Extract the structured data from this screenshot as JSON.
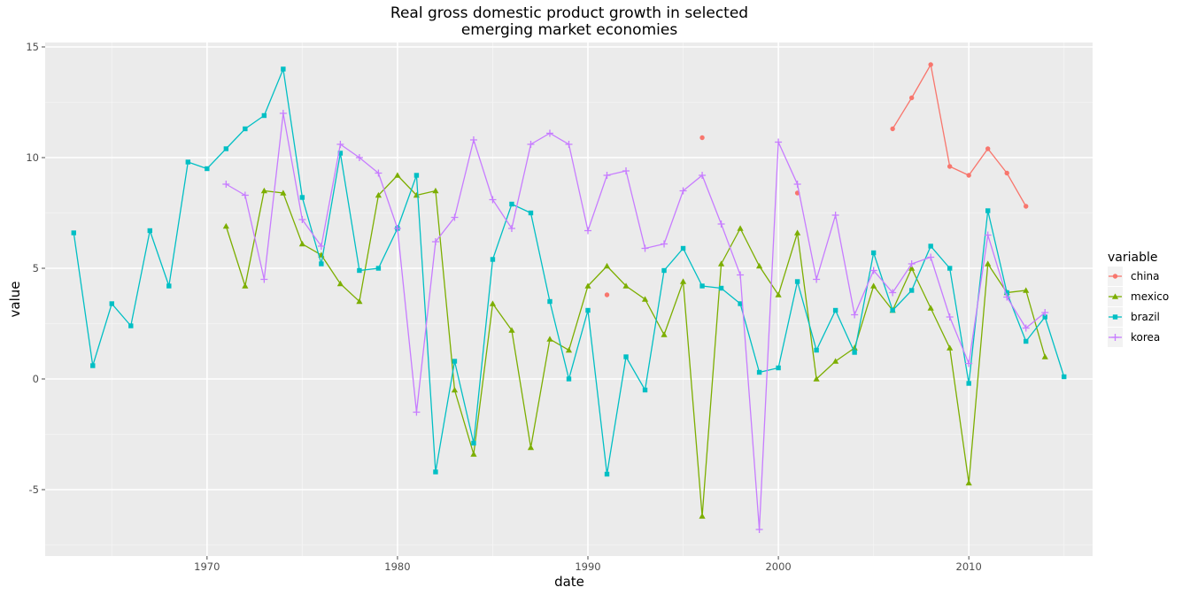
{
  "chart_data": {
    "type": "line",
    "title_line1": "Real gross domestic product growth in selected",
    "title_line2": "emerging market economies",
    "xlabel": "date",
    "ylabel": "value",
    "xlim": [
      1961.5,
      2016.5
    ],
    "ylim": [
      -8,
      15.2
    ],
    "x_ticks": [
      1970,
      1980,
      1990,
      2000,
      2010
    ],
    "y_ticks": [
      -5,
      0,
      5,
      10,
      15
    ],
    "y_tick_labels": [
      "-5",
      "0",
      "5",
      "10",
      "15"
    ],
    "grid": true,
    "legend_title": "variable",
    "legend_position": "right",
    "series": [
      {
        "name": "china",
        "color": "#F8766D",
        "marker": "circle",
        "points": [
          [
            1991,
            3.8
          ],
          [
            1996,
            10.9
          ],
          [
            2001,
            8.4
          ],
          [
            2006,
            11.3
          ],
          [
            2007,
            12.7
          ],
          [
            2008,
            14.2
          ],
          [
            2009,
            9.6
          ],
          [
            2010,
            9.2
          ],
          [
            2011,
            10.4
          ],
          [
            2012,
            9.3
          ],
          [
            2013,
            7.8
          ]
        ]
      },
      {
        "name": "mexico",
        "color": "#7CAE00",
        "marker": "triangle",
        "points": [
          [
            1971,
            6.9
          ],
          [
            1972,
            4.2
          ],
          [
            1973,
            8.5
          ],
          [
            1974,
            8.4
          ],
          [
            1975,
            6.1
          ],
          [
            1976,
            5.6
          ],
          [
            1977,
            4.3
          ],
          [
            1978,
            3.5
          ],
          [
            1979,
            8.3
          ],
          [
            1980,
            9.2
          ],
          [
            1981,
            8.3
          ],
          [
            1982,
            8.5
          ],
          [
            1983,
            -0.5
          ],
          [
            1984,
            -3.4
          ],
          [
            1985,
            3.4
          ],
          [
            1986,
            2.2
          ],
          [
            1987,
            -3.1
          ],
          [
            1988,
            1.8
          ],
          [
            1989,
            1.3
          ],
          [
            1990,
            4.2
          ],
          [
            1991,
            5.1
          ],
          [
            1992,
            4.2
          ],
          [
            1993,
            3.6
          ],
          [
            1994,
            2.0
          ],
          [
            1995,
            4.4
          ],
          [
            1996,
            -6.2
          ],
          [
            1997,
            5.2
          ],
          [
            1998,
            6.8
          ],
          [
            1999,
            5.1
          ],
          [
            2000,
            3.8
          ],
          [
            2001,
            6.6
          ],
          [
            2002,
            0.0
          ],
          [
            2003,
            0.8
          ],
          [
            2004,
            1.4
          ],
          [
            2005,
            4.2
          ],
          [
            2006,
            3.1
          ],
          [
            2007,
            5.0
          ],
          [
            2008,
            3.2
          ],
          [
            2009,
            1.4
          ],
          [
            2010,
            -4.7
          ],
          [
            2011,
            5.2
          ],
          [
            2012,
            3.9
          ],
          [
            2013,
            4.0
          ],
          [
            2014,
            1.0
          ]
        ]
      },
      {
        "name": "brazil",
        "color": "#00BFC4",
        "marker": "square",
        "points": [
          [
            1963,
            6.6
          ],
          [
            1964,
            0.6
          ],
          [
            1965,
            3.4
          ],
          [
            1966,
            2.4
          ],
          [
            1967,
            6.7
          ],
          [
            1968,
            4.2
          ],
          [
            1969,
            9.8
          ],
          [
            1970,
            9.5
          ],
          [
            1971,
            10.4
          ],
          [
            1972,
            11.3
          ],
          [
            1973,
            11.9
          ],
          [
            1974,
            14.0
          ],
          [
            1975,
            8.2
          ],
          [
            1976,
            5.2
          ],
          [
            1977,
            10.2
          ],
          [
            1978,
            4.9
          ],
          [
            1979,
            5.0
          ],
          [
            1980,
            6.8
          ],
          [
            1981,
            9.2
          ],
          [
            1982,
            -4.2
          ],
          [
            1983,
            0.8
          ],
          [
            1984,
            -2.9
          ],
          [
            1985,
            5.4
          ],
          [
            1986,
            7.9
          ],
          [
            1987,
            7.5
          ],
          [
            1988,
            3.5
          ],
          [
            1989,
            0.0
          ],
          [
            1990,
            3.1
          ],
          [
            1991,
            -4.3
          ],
          [
            1992,
            1.0
          ],
          [
            1993,
            -0.5
          ],
          [
            1994,
            4.9
          ],
          [
            1995,
            5.9
          ],
          [
            1996,
            4.2
          ],
          [
            1997,
            4.1
          ],
          [
            1998,
            3.4
          ],
          [
            1999,
            0.3
          ],
          [
            2000,
            0.5
          ],
          [
            2001,
            4.4
          ],
          [
            2002,
            1.3
          ],
          [
            2003,
            3.1
          ],
          [
            2004,
            1.2
          ],
          [
            2005,
            5.7
          ],
          [
            2006,
            3.1
          ],
          [
            2007,
            4.0
          ],
          [
            2008,
            6.0
          ],
          [
            2009,
            5.0
          ],
          [
            2010,
            -0.2
          ],
          [
            2011,
            7.6
          ],
          [
            2012,
            3.9
          ],
          [
            2013,
            1.7
          ],
          [
            2014,
            2.8
          ],
          [
            2015,
            0.1
          ]
        ]
      },
      {
        "name": "korea",
        "color": "#C77CFF",
        "marker": "plus",
        "points": [
          [
            1971,
            8.8
          ],
          [
            1972,
            8.3
          ],
          [
            1973,
            4.5
          ],
          [
            1974,
            12.0
          ],
          [
            1975,
            7.2
          ],
          [
            1976,
            6.0
          ],
          [
            1977,
            10.6
          ],
          [
            1978,
            10.0
          ],
          [
            1979,
            9.3
          ],
          [
            1980,
            6.8
          ],
          [
            1981,
            -1.5
          ],
          [
            1982,
            6.2
          ],
          [
            1983,
            7.3
          ],
          [
            1984,
            10.8
          ],
          [
            1985,
            8.1
          ],
          [
            1986,
            6.8
          ],
          [
            1987,
            10.6
          ],
          [
            1988,
            11.1
          ],
          [
            1989,
            10.6
          ],
          [
            1990,
            6.7
          ],
          [
            1991,
            9.2
          ],
          [
            1992,
            9.4
          ],
          [
            1993,
            5.9
          ],
          [
            1994,
            6.1
          ],
          [
            1995,
            8.5
          ],
          [
            1996,
            9.2
          ],
          [
            1997,
            7.0
          ],
          [
            1998,
            4.7
          ],
          [
            1999,
            -6.8
          ],
          [
            2000,
            10.7
          ],
          [
            2001,
            8.8
          ],
          [
            2002,
            4.5
          ],
          [
            2003,
            7.4
          ],
          [
            2004,
            2.9
          ],
          [
            2005,
            4.9
          ],
          [
            2006,
            3.9
          ],
          [
            2007,
            5.2
          ],
          [
            2008,
            5.5
          ],
          [
            2009,
            2.8
          ],
          [
            2010,
            0.7
          ],
          [
            2011,
            6.5
          ],
          [
            2012,
            3.7
          ],
          [
            2013,
            2.3
          ],
          [
            2014,
            3.0
          ]
        ]
      }
    ]
  }
}
